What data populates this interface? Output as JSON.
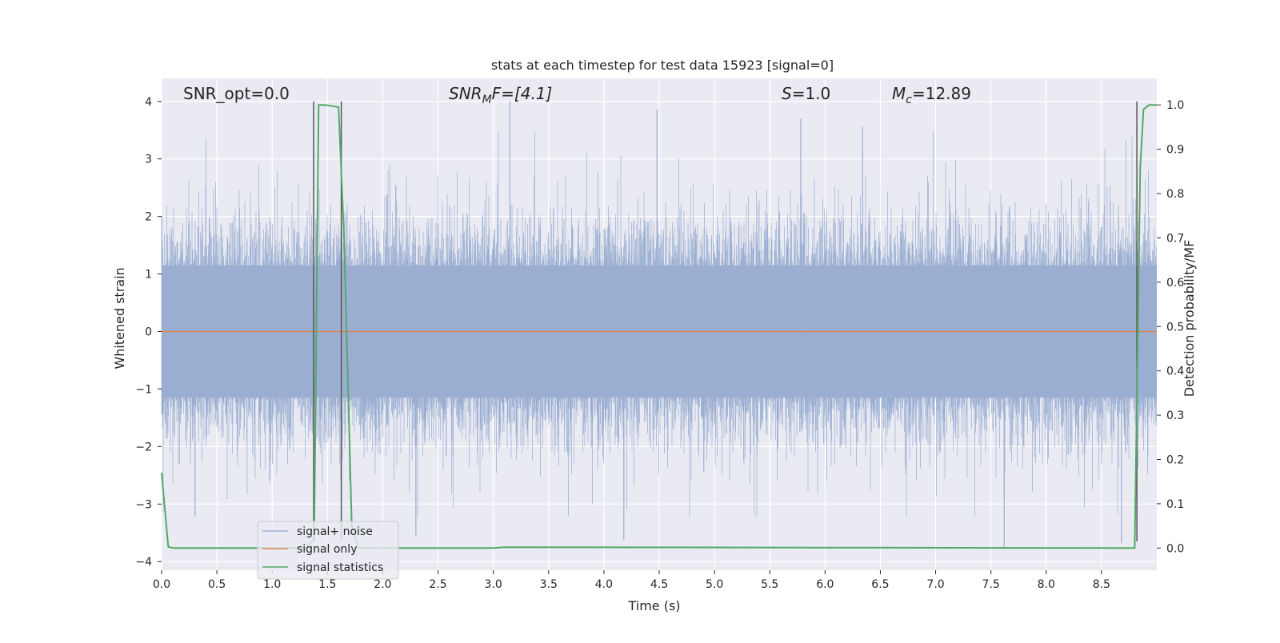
{
  "chart_data": {
    "type": "line",
    "title": "stats at each timestep for test data 15923 [signal=0]",
    "xlabel": "Time (s)",
    "ylabel": "Whitened strain",
    "y2label": "Detection probability/MF",
    "xlim": [
      0,
      9
    ],
    "ylim": [
      -4.15,
      4.4
    ],
    "y2lim": [
      -0.05,
      1.06
    ],
    "xticks": [
      "0.0",
      "0.5",
      "1.0",
      "1.5",
      "2.0",
      "2.5",
      "3.0",
      "3.5",
      "4.0",
      "4.5",
      "5.0",
      "5.5",
      "6.0",
      "6.5",
      "7.0",
      "7.5",
      "8.0",
      "8.5"
    ],
    "yticks": [
      "4",
      "3",
      "2",
      "1",
      "0",
      "−1",
      "−2",
      "−3",
      "−4"
    ],
    "y2ticks": [
      "1.0",
      "0.9",
      "0.8",
      "0.7",
      "0.6",
      "0.5",
      "0.4",
      "0.3",
      "0.2",
      "0.1",
      "0.0"
    ],
    "grid": true,
    "legend_position": "lower-left",
    "annotations": {
      "snr_opt": "SNR_opt=0.0",
      "snr_mf_main": "SNR",
      "snr_mf_sub": "M",
      "snr_mf_rest": "F=[4.1]",
      "s_italic": "S",
      "s_rest": "=1.0",
      "mc_italic": "M",
      "mc_sub": "c",
      "mc_rest": "=12.89"
    },
    "vlines_x": [
      1.375,
      1.625,
      8.82
    ],
    "colors": {
      "noise": "#9aaed2",
      "signal": "#dd8452",
      "statistics": "#55a868",
      "vline": "#555555",
      "plot_bg": "#eaeaf2",
      "grid": "#ffffff"
    },
    "series": [
      {
        "name": "signal+ noise",
        "axis": "left",
        "envelope_typical": 1.7,
        "envelope_peak": 4.0,
        "peak_max": 4.0,
        "peak_min": -3.78
      },
      {
        "name": "signal only",
        "axis": "left",
        "x": [
          0,
          9
        ],
        "y": [
          0,
          0
        ]
      },
      {
        "name": "signal statistics",
        "axis": "right",
        "x": [
          0.0,
          0.06,
          0.1,
          0.15,
          1.3,
          1.38,
          1.42,
          1.48,
          1.6,
          1.65,
          1.72,
          1.78,
          3.0,
          3.1,
          8.8,
          8.85,
          8.88,
          8.93,
          9.0
        ],
        "y": [
          0.17,
          0.003,
          0.0,
          0.0,
          0.0,
          0.02,
          1.0,
          1.0,
          0.995,
          0.7,
          0.05,
          0.0,
          0.0,
          0.002,
          0.0,
          0.86,
          0.99,
          1.0,
          1.0
        ]
      }
    ]
  }
}
